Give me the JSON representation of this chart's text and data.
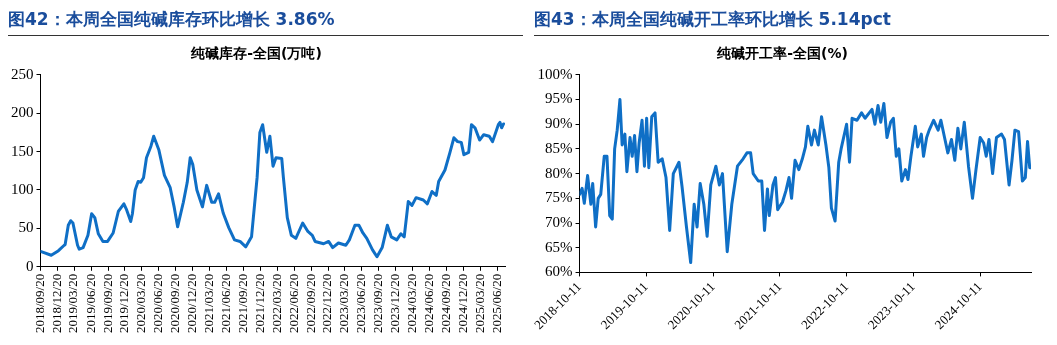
{
  "chart_data": [
    {
      "type": "line",
      "title": "图42：本周全国纯碱库存环比增长 3.86%",
      "subtitle": "纯碱库存-全国(万吨)",
      "color": "#0f6fc6",
      "marker": "none",
      "grid": false,
      "x": [
        "2018-09-20",
        "2018-11-17",
        "2018-12-26",
        "2019-01-26",
        "2019-01-31",
        "2019-02-17",
        "2019-03-02",
        "2019-03-14",
        "2019-04-08",
        "2019-04-17",
        "2019-05-08",
        "2019-06-03",
        "2019-06-23",
        "2019-07-10",
        "2019-07-29",
        "2019-08-23",
        "2019-09-17",
        "2019-10-17",
        "2019-11-14",
        "2019-12-14",
        "2019-12-29",
        "2020-01-20",
        "2020-01-29",
        "2020-02-13",
        "2020-02-29",
        "2020-03-14",
        "2020-03-29",
        "2020-04-14",
        "2020-05-08",
        "2020-05-23",
        "2020-06-20",
        "2020-07-20",
        "2020-08-20",
        "2020-09-11",
        "2020-09-29",
        "2020-10-30",
        "2020-11-20",
        "2020-12-06",
        "2020-12-20",
        "2021-01-11",
        "2021-02-10",
        "2021-03-05",
        "2021-04-01",
        "2021-04-17",
        "2021-05-08",
        "2021-06-02",
        "2021-07-02",
        "2021-08-02",
        "2021-09-01",
        "2021-10-02",
        "2021-11-02",
        "2021-12-02",
        "2021-12-17",
        "2022-01-01",
        "2022-01-23",
        "2022-02-09",
        "2022-02-26",
        "2022-03-14",
        "2022-04-14",
        "2022-04-23",
        "2022-05-14",
        "2022-06-05",
        "2022-06-29",
        "2022-08-05",
        "2022-09-02",
        "2022-09-26",
        "2022-10-11",
        "2022-11-26",
        "2022-12-23",
        "2023-01-14",
        "2023-02-14",
        "2023-03-26",
        "2023-04-14",
        "2023-05-14",
        "2023-06-05",
        "2023-06-26",
        "2023-07-17",
        "2023-08-17",
        "2023-09-10",
        "2023-10-08",
        "2023-11-05",
        "2023-11-26",
        "2023-12-26",
        "2024-01-17",
        "2024-02-04",
        "2024-02-26",
        "2024-03-17",
        "2024-04-08",
        "2024-05-17",
        "2024-06-08",
        "2024-07-03",
        "2024-07-26",
        "2024-08-08",
        "2024-09-11",
        "2024-10-08",
        "2024-10-29",
        "2024-11-18",
        "2024-12-08",
        "2024-12-22",
        "2025-01-17",
        "2025-02-01",
        "2025-02-20",
        "2025-03-17",
        "2025-04-08",
        "2025-05-08",
        "2025-05-26",
        "2025-06-26",
        "2025-07-05",
        "2025-07-14",
        "2025-07-24"
      ],
      "values": [
        20,
        15,
        21,
        28,
        29,
        54,
        60,
        57,
        28,
        23,
        25,
        41,
        69,
        64,
        43,
        33,
        33,
        44,
        72,
        82,
        74,
        59,
        69,
        100,
        111,
        110,
        116,
        142,
        157,
        170,
        152,
        119,
        103,
        77,
        52,
        84,
        110,
        142,
        133,
        100,
        78,
        106,
        84,
        84,
        95,
        70,
        51,
        35,
        33,
        26,
        39,
        116,
        175,
        185,
        149,
        170,
        131,
        142,
        141,
        116,
        64,
        41,
        37,
        57,
        46,
        41,
        33,
        30,
        33,
        25,
        31,
        28,
        35,
        54,
        54,
        44,
        37,
        22,
        13,
        25,
        54,
        39,
        35,
        43,
        39,
        85,
        80,
        90,
        87,
        82,
        98,
        93,
        111,
        126,
        149,
        168,
        163,
        162,
        146,
        149,
        185,
        181,
        165,
        172,
        170,
        163,
        185,
        188,
        181,
        186
      ],
      "xlim": [
        "2018-09-20",
        "2025-08-01"
      ],
      "xticks": [
        {
          "value": "2018-09-20",
          "label": "2018/09/20"
        },
        {
          "value": "2018-12-20",
          "label": "2018/12/20"
        },
        {
          "value": "2019-03-20",
          "label": "2019/03/20"
        },
        {
          "value": "2019-06-20",
          "label": "2019/06/20"
        },
        {
          "value": "2019-09-20",
          "label": "2019/09/20"
        },
        {
          "value": "2019-12-20",
          "label": "2019/12/20"
        },
        {
          "value": "2020-03-20",
          "label": "2020/03/20"
        },
        {
          "value": "2020-06-20",
          "label": "2020/06/20"
        },
        {
          "value": "2020-09-20",
          "label": "2020/09/20"
        },
        {
          "value": "2020-12-20",
          "label": "2020/12/20"
        },
        {
          "value": "2021-03-20",
          "label": "2021/03/20"
        },
        {
          "value": "2021-06-20",
          "label": "2021/06/20"
        },
        {
          "value": "2021-09-20",
          "label": "2021/09/20"
        },
        {
          "value": "2021-12-20",
          "label": "2021/12/20"
        },
        {
          "value": "2022-03-20",
          "label": "2022/03/20"
        },
        {
          "value": "2022-06-20",
          "label": "2022/06/20"
        },
        {
          "value": "2022-09-20",
          "label": "2022/09/20"
        },
        {
          "value": "2022-12-20",
          "label": "2022/12/20"
        },
        {
          "value": "2023-03-20",
          "label": "2023/03/20"
        },
        {
          "value": "2023-06-20",
          "label": "2023/06/20"
        },
        {
          "value": "2023-09-20",
          "label": "2023/09/20"
        },
        {
          "value": "2023-12-20",
          "label": "2023/12/20"
        },
        {
          "value": "2024-03-20",
          "label": "2024/03/20"
        },
        {
          "value": "2024-06-20",
          "label": "2024/06/20"
        },
        {
          "value": "2024-09-20",
          "label": "2024/09/20"
        },
        {
          "value": "2024-12-20",
          "label": "2024/12/20"
        },
        {
          "value": "2025-03-20",
          "label": "2025/03/20"
        },
        {
          "value": "2025-06-20",
          "label": "2025/06/20"
        }
      ],
      "ylim": [
        0,
        250
      ],
      "yticks": [
        0,
        50,
        100,
        150,
        200,
        250
      ]
    },
    {
      "type": "line",
      "title": "图43：本周全国纯碱开工率环比增长 5.14pct",
      "subtitle": "纯碱开工率-全国(%)",
      "color": "#0f6fc6",
      "marker": "none",
      "grid": false,
      "x": [
        "2018-10-11",
        "2018-10-25",
        "2018-11-06",
        "2018-11-24",
        "2018-12-12",
        "2018-12-22",
        "2019-01-07",
        "2019-01-21",
        "2019-02-04",
        "2019-02-23",
        "2019-03-10",
        "2019-03-25",
        "2019-04-08",
        "2019-04-21",
        "2019-05-05",
        "2019-05-20",
        "2019-06-01",
        "2019-06-16",
        "2019-06-27",
        "2019-07-14",
        "2019-07-26",
        "2019-08-08",
        "2019-08-21",
        "2019-09-02",
        "2019-09-18",
        "2019-10-01",
        "2019-10-13",
        "2019-10-25",
        "2019-11-10",
        "2019-11-28",
        "2019-12-15",
        "2020-01-06",
        "2020-01-27",
        "2020-02-16",
        "2020-03-07",
        "2020-04-07",
        "2020-04-24",
        "2020-05-18",
        "2020-06-10",
        "2020-06-29",
        "2020-07-15",
        "2020-08-01",
        "2020-08-21",
        "2020-09-08",
        "2020-09-28",
        "2020-10-26",
        "2020-11-14",
        "2020-12-01",
        "2020-12-27",
        "2021-01-21",
        "2021-02-21",
        "2021-03-24",
        "2021-04-14",
        "2021-05-04",
        "2021-05-18",
        "2021-06-15",
        "2021-07-04",
        "2021-07-19",
        "2021-08-04",
        "2021-08-14",
        "2021-09-03",
        "2021-09-17",
        "2021-09-29",
        "2021-10-25",
        "2021-11-13",
        "2021-11-30",
        "2021-12-14",
        "2022-01-02",
        "2022-01-23",
        "2022-02-11",
        "2022-02-28",
        "2022-03-13",
        "2022-04-02",
        "2022-04-18",
        "2022-05-09",
        "2022-05-27",
        "2022-06-20",
        "2022-07-06",
        "2022-07-20",
        "2022-08-09",
        "2022-08-29",
        "2022-09-11",
        "2022-10-11",
        "2022-10-27",
        "2022-11-10",
        "2022-12-07",
        "2023-01-01",
        "2023-01-20",
        "2023-02-12",
        "2023-02-27",
        "2023-03-15",
        "2023-04-01",
        "2023-04-16",
        "2023-05-03",
        "2023-05-20",
        "2023-06-09",
        "2023-06-24",
        "2023-07-10",
        "2023-07-24",
        "2023-08-09",
        "2023-08-29",
        "2023-09-12",
        "2023-09-28",
        "2023-10-22",
        "2023-11-04",
        "2023-11-24",
        "2023-12-06",
        "2023-12-23",
        "2024-01-06",
        "2024-01-30",
        "2024-02-24",
        "2024-03-10",
        "2024-03-30",
        "2024-04-17",
        "2024-05-07",
        "2024-05-25",
        "2024-06-11",
        "2024-06-27",
        "2024-07-16",
        "2024-08-08",
        "2024-08-30",
        "2024-09-18",
        "2024-10-11",
        "2024-10-30",
        "2024-11-13",
        "2024-11-28",
        "2024-12-18",
        "2025-01-08",
        "2025-02-05",
        "2025-02-21",
        "2025-03-18",
        "2025-04-03",
        "2025-04-19",
        "2025-05-09",
        "2025-05-30",
        "2025-06-15",
        "2025-06-27",
        "2025-07-09",
        "2025-07-16"
      ],
      "values": [
        75.8,
        77,
        74,
        79.6,
        73.8,
        78,
        69.2,
        75,
        75.8,
        83.5,
        83.5,
        71.5,
        70.8,
        85,
        88.8,
        95,
        85.8,
        88,
        80.4,
        87.3,
        83.5,
        87.7,
        80.4,
        86.2,
        90.8,
        81.5,
        91.2,
        81.2,
        91.5,
        92.3,
        82.3,
        83,
        79.2,
        68.5,
        80,
        82.3,
        77.3,
        69.2,
        62,
        73.8,
        69.2,
        78,
        73.8,
        67.3,
        77.7,
        81.5,
        77.7,
        80,
        64.2,
        73.8,
        81.5,
        83,
        84.2,
        84.2,
        80,
        78.5,
        78.5,
        68.5,
        76.9,
        71.5,
        77.7,
        79.2,
        72.7,
        74.2,
        76.5,
        79.2,
        75,
        82.7,
        80.8,
        83,
        85.4,
        89.6,
        85.8,
        88.8,
        85.8,
        91.5,
        85.8,
        81.2,
        73,
        70.4,
        82.3,
        85,
        90,
        82.3,
        91.2,
        90.8,
        92.3,
        91.2,
        92.3,
        93,
        90,
        93.8,
        90.4,
        94.2,
        87.3,
        90.4,
        91.2,
        83.5,
        85,
        78.5,
        80.8,
        78.8,
        83.5,
        89.6,
        85.4,
        88,
        83.5,
        87.3,
        88.8,
        90.8,
        88.8,
        90.8,
        87.3,
        84.2,
        86.9,
        82.7,
        89.2,
        85,
        90.4,
        81.5,
        75,
        80.8,
        87.3,
        86.2,
        83.5,
        86.9,
        80,
        87.3,
        88,
        86.9,
        77.7,
        82.7,
        88.8,
        88.5,
        78.5,
        79.2,
        86.5,
        81.2,
        81.2
      ],
      "xlim": [
        "2018-10-11",
        "2025-07-16"
      ],
      "xticks": [
        "2018-10-11",
        "2019-10-11",
        "2020-10-11",
        "2021-10-11",
        "2022-10-11",
        "2023-10-11",
        "2024-10-11"
      ],
      "ylim": [
        60,
        100
      ],
      "yticks": [
        {
          "value": 60,
          "label": "60%"
        },
        {
          "value": 65,
          "label": "65%"
        },
        {
          "value": 70,
          "label": "70%"
        },
        {
          "value": 75,
          "label": "75%"
        },
        {
          "value": 80,
          "label": "80%"
        },
        {
          "value": 85,
          "label": "85%"
        },
        {
          "value": 90,
          "label": "90%"
        },
        {
          "value": 95,
          "label": "95%"
        },
        {
          "value": 100,
          "label": "100%"
        }
      ]
    }
  ]
}
